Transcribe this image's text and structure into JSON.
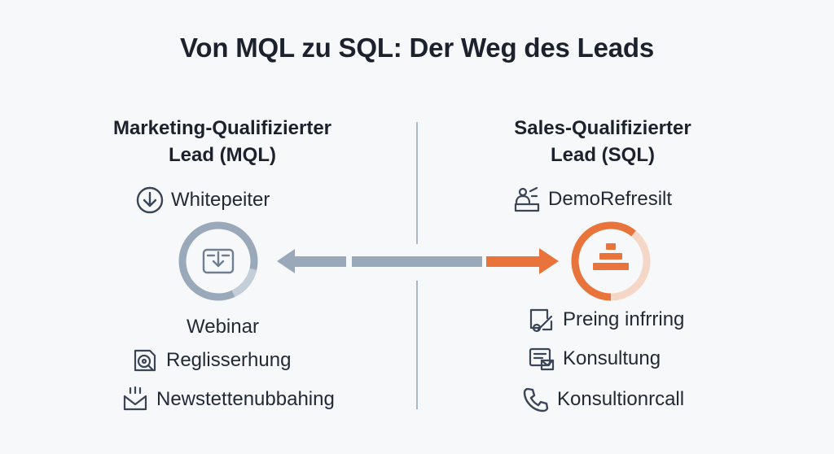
{
  "title": "Von MQL zu SQL: Der Weg des Leads",
  "left": {
    "heading_line1": "Marketing-Qualifizierter",
    "heading_line2": "Lead (MQL)",
    "items": [
      {
        "label": "Whitepeiter",
        "icon": "download-circle-icon"
      },
      {
        "label": "Webinar",
        "icon": ""
      },
      {
        "label": "Reglisserhung",
        "icon": "disc-document-icon"
      },
      {
        "label": "Newstettenubbahing",
        "icon": "mail-inbox-icon"
      }
    ],
    "hub_icon": "inbox-download-icon",
    "color": "#9aa9ba"
  },
  "right": {
    "heading_line1": "Sales-Qualifizierter",
    "heading_line2": "Lead (SQL)",
    "items": [
      {
        "label": "DemoRefresilt",
        "icon": "presenter-icon"
      },
      {
        "label": "Preing infrring",
        "icon": "tag-document-icon"
      },
      {
        "label": "Konsultung",
        "icon": "email-card-icon"
      },
      {
        "label": "Konsultionrcall",
        "icon": "phone-icon"
      }
    ],
    "hub_icon": "pyramid-icon",
    "color": "#e8743b"
  }
}
